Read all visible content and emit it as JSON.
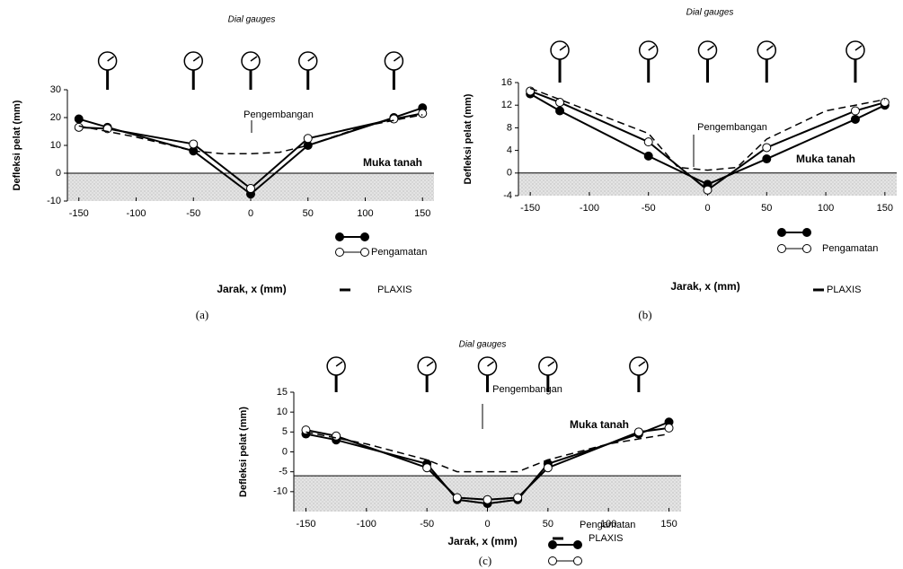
{
  "chart_data": [
    {
      "type": "line",
      "panel": "(a)",
      "gauge_label": "Dial gauges",
      "upheaval_label": "Pengembangan",
      "ground_label": "Muka tanah",
      "x_label": "Jarak, x (mm)",
      "y_label": "Defleksi pelat (mm)",
      "xlim": [
        -160,
        160
      ],
      "ylim": [
        -10,
        30
      ],
      "xticks": [
        -150,
        -100,
        -50,
        0,
        50,
        100,
        150
      ],
      "yticks": [
        -10,
        0,
        10,
        20,
        30
      ],
      "ground_level": 0,
      "gauges": [
        -125,
        -50,
        0,
        50,
        125
      ],
      "series": [
        {
          "color": "#000000",
          "marker": "filled",
          "style": "solid",
          "x": [
            -150,
            -125,
            -50,
            0,
            50,
            125,
            150
          ],
          "values": [
            19.5,
            16.5,
            8,
            -7.5,
            10,
            20,
            23.5
          ]
        },
        {
          "name": "Pengamatan",
          "color": "#000000",
          "marker": "open",
          "style": "solid",
          "x": [
            -150,
            -125,
            -50,
            0,
            50,
            125,
            150
          ],
          "values": [
            16.5,
            16,
            10.5,
            -5.5,
            12.5,
            19.5,
            21.5
          ]
        },
        {
          "name": "PLAXIS",
          "color": "#000000",
          "marker": "none",
          "style": "dashed",
          "x": [
            -150,
            -100,
            -50,
            -25,
            0,
            25,
            50,
            100,
            150
          ],
          "values": [
            17,
            13,
            8,
            7,
            7,
            7.5,
            10,
            17,
            21
          ]
        }
      ]
    },
    {
      "type": "line",
      "panel": "(b)",
      "gauge_label": "Dial gauges",
      "upheaval_label": "Pengembangan",
      "ground_label": "Muka tanah",
      "x_label": "Jarak, x (mm)",
      "y_label": "Defleksi pelat (mm)",
      "xlim": [
        -160,
        160
      ],
      "ylim": [
        -4,
        16
      ],
      "xticks": [
        -150,
        -100,
        -50,
        0,
        50,
        100,
        150
      ],
      "yticks": [
        -4,
        0,
        4,
        8,
        12,
        16
      ],
      "ground_level": 0,
      "gauges": [
        -125,
        -50,
        0,
        50,
        125
      ],
      "series": [
        {
          "color": "#000000",
          "marker": "filled",
          "style": "solid",
          "x": [
            -150,
            -125,
            -50,
            0,
            50,
            125,
            150
          ],
          "values": [
            14,
            11,
            3,
            -2,
            2.5,
            9.5,
            12
          ]
        },
        {
          "name": "Pengamatan",
          "color": "#000000",
          "marker": "open",
          "style": "solid",
          "x": [
            -150,
            -125,
            -50,
            0,
            50,
            125,
            150
          ],
          "values": [
            14.5,
            12.5,
            5.5,
            -3,
            4.5,
            11,
            12.5
          ]
        },
        {
          "name": "PLAXIS",
          "color": "#000000",
          "marker": "none",
          "style": "dashed",
          "x": [
            -150,
            -100,
            -50,
            -25,
            0,
            25,
            50,
            100,
            150
          ],
          "values": [
            15,
            11,
            7,
            1,
            0.5,
            1,
            6,
            11,
            13
          ]
        }
      ]
    },
    {
      "type": "line",
      "panel": "(c)",
      "gauge_label": "Dial gauges",
      "upheaval_label": "Pengembangan",
      "ground_label": "Muka tanah",
      "x_label": "Jarak, x (mm)",
      "y_label": "Defleksi pelat (mm)",
      "xlim": [
        -160,
        160
      ],
      "ylim": [
        -15,
        15
      ],
      "xticks": [
        -150,
        -100,
        -50,
        0,
        50,
        100,
        150
      ],
      "yticks": [
        -10,
        -5,
        0,
        5,
        10,
        15
      ],
      "ground_level": -6,
      "gauges": [
        -125,
        -50,
        0,
        50,
        125
      ],
      "series": [
        {
          "color": "#000000",
          "marker": "filled",
          "style": "solid",
          "x": [
            -150,
            -125,
            -50,
            -25,
            0,
            25,
            50,
            125,
            150
          ],
          "values": [
            4.5,
            3,
            -3,
            -12,
            -13,
            -12,
            -3,
            4.5,
            7.5
          ]
        },
        {
          "name": "Pengamatan",
          "color": "#000000",
          "marker": "open",
          "style": "solid",
          "x": [
            -150,
            -125,
            -50,
            -25,
            0,
            25,
            50,
            125,
            150
          ],
          "values": [
            5.5,
            4,
            -4,
            -11.5,
            -12,
            -11.5,
            -4,
            5,
            6
          ]
        },
        {
          "name": "PLAXIS",
          "color": "#000000",
          "marker": "none",
          "style": "dashed",
          "x": [
            -150,
            -100,
            -50,
            -25,
            0,
            25,
            50,
            100,
            150
          ],
          "values": [
            5,
            2,
            -2,
            -5,
            -5,
            -5,
            -2,
            2,
            4.5
          ]
        }
      ]
    }
  ]
}
